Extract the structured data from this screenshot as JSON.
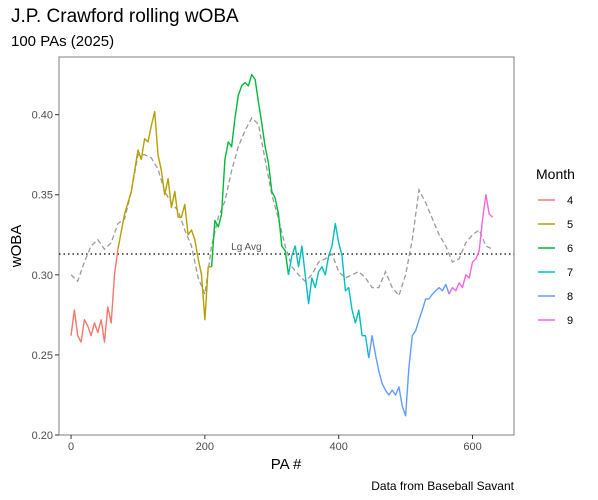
{
  "chart_data": {
    "type": "line",
    "title": "J.P. Crawford rolling wOBA",
    "subtitle": "100 PAs (2025)",
    "caption": "Data from Baseball Savant",
    "xlabel": "PA #",
    "ylabel": "wOBA",
    "xlim": [
      -18,
      662
    ],
    "ylim": [
      0.2,
      0.436
    ],
    "x_ticks": [
      0,
      200,
      400,
      600
    ],
    "y_ticks": [
      0.2,
      0.25,
      0.3,
      0.35,
      0.4
    ],
    "grid": false,
    "legend": {
      "title": "Month",
      "position": "right"
    },
    "reference_line": {
      "label": "Lg Avg",
      "value": 0.313,
      "style": "dotted"
    },
    "comparison_line": {
      "style": "dashed",
      "color": "#9a9a9a",
      "x": [
        0,
        10,
        20,
        30,
        40,
        50,
        60,
        70,
        80,
        90,
        100,
        110,
        120,
        130,
        140,
        150,
        160,
        170,
        180,
        190,
        200,
        210,
        220,
        230,
        240,
        250,
        260,
        270,
        280,
        290,
        300,
        310,
        320,
        330,
        340,
        350,
        360,
        370,
        380,
        390,
        400,
        410,
        420,
        430,
        440,
        450,
        460,
        470,
        480,
        490,
        500,
        510,
        520,
        530,
        540,
        550,
        560,
        570,
        580,
        590,
        600,
        610,
        620,
        630
      ],
      "y": [
        0.3,
        0.296,
        0.308,
        0.318,
        0.322,
        0.316,
        0.32,
        0.332,
        0.335,
        0.352,
        0.375,
        0.375,
        0.373,
        0.366,
        0.352,
        0.345,
        0.34,
        0.328,
        0.318,
        0.298,
        0.288,
        0.318,
        0.336,
        0.346,
        0.365,
        0.38,
        0.39,
        0.398,
        0.394,
        0.372,
        0.35,
        0.335,
        0.318,
        0.305,
        0.3,
        0.296,
        0.3,
        0.308,
        0.31,
        0.313,
        0.302,
        0.298,
        0.3,
        0.302,
        0.298,
        0.292,
        0.292,
        0.302,
        0.292,
        0.287,
        0.3,
        0.322,
        0.353,
        0.345,
        0.335,
        0.325,
        0.318,
        0.308,
        0.31,
        0.32,
        0.325,
        0.328,
        0.318,
        0.316
      ]
    },
    "series": [
      {
        "name": "4",
        "color": "#F8766D",
        "x": [
          0,
          5,
          10,
          15,
          20,
          25,
          30,
          35,
          40,
          45,
          50,
          55,
          60,
          65,
          70
        ],
        "y": [
          0.262,
          0.278,
          0.262,
          0.258,
          0.272,
          0.268,
          0.262,
          0.27,
          0.264,
          0.272,
          0.258,
          0.28,
          0.27,
          0.3,
          0.316
        ]
      },
      {
        "name": "5",
        "color": "#B79F00",
        "x": [
          70,
          80,
          90,
          100,
          105,
          110,
          115,
          120,
          125,
          130,
          135,
          140,
          145,
          150,
          155,
          160,
          165,
          170,
          175,
          180,
          185,
          190,
          195,
          200,
          205,
          210
        ],
        "y": [
          0.316,
          0.338,
          0.352,
          0.378,
          0.372,
          0.385,
          0.383,
          0.393,
          0.402,
          0.375,
          0.365,
          0.35,
          0.36,
          0.342,
          0.352,
          0.336,
          0.336,
          0.344,
          0.325,
          0.328,
          0.322,
          0.31,
          0.3,
          0.272,
          0.305,
          0.305
        ]
      },
      {
        "name": "6",
        "color": "#00BA38",
        "x": [
          210,
          215,
          220,
          225,
          230,
          235,
          240,
          245,
          250,
          255,
          260,
          265,
          270,
          275,
          280,
          285,
          290,
          295,
          300,
          305,
          310,
          315,
          320,
          325
        ],
        "y": [
          0.305,
          0.334,
          0.33,
          0.338,
          0.372,
          0.383,
          0.38,
          0.398,
          0.412,
          0.418,
          0.42,
          0.418,
          0.425,
          0.422,
          0.408,
          0.395,
          0.38,
          0.37,
          0.352,
          0.348,
          0.338,
          0.318,
          0.315,
          0.3
        ]
      },
      {
        "name": "7",
        "color": "#00BFC4",
        "x": [
          325,
          330,
          335,
          340,
          345,
          350,
          355,
          360,
          365,
          370,
          375,
          380,
          385,
          390,
          395,
          400,
          405,
          410,
          415,
          420,
          425,
          430,
          435,
          440,
          445
        ],
        "y": [
          0.3,
          0.312,
          0.318,
          0.305,
          0.318,
          0.3,
          0.282,
          0.298,
          0.292,
          0.302,
          0.305,
          0.3,
          0.312,
          0.318,
          0.332,
          0.32,
          0.312,
          0.29,
          0.292,
          0.278,
          0.27,
          0.278,
          0.262,
          0.262,
          0.248
        ]
      },
      {
        "name": "8",
        "color": "#619CFF",
        "x": [
          445,
          450,
          455,
          460,
          465,
          470,
          475,
          480,
          485,
          490,
          495,
          500,
          505,
          510,
          515,
          520,
          525,
          530,
          535,
          540,
          545,
          550,
          555,
          560,
          565
        ],
        "y": [
          0.248,
          0.262,
          0.25,
          0.24,
          0.232,
          0.228,
          0.225,
          0.228,
          0.225,
          0.23,
          0.218,
          0.212,
          0.242,
          0.262,
          0.265,
          0.272,
          0.278,
          0.285,
          0.285,
          0.288,
          0.29,
          0.292,
          0.29,
          0.294,
          0.288
        ]
      },
      {
        "name": "9",
        "color": "#F564E3",
        "x": [
          565,
          570,
          575,
          580,
          585,
          590,
          595,
          600,
          605,
          610,
          615,
          620,
          625,
          630
        ],
        "y": [
          0.288,
          0.292,
          0.29,
          0.295,
          0.292,
          0.3,
          0.298,
          0.308,
          0.31,
          0.315,
          0.335,
          0.35,
          0.338,
          0.336
        ]
      }
    ]
  }
}
